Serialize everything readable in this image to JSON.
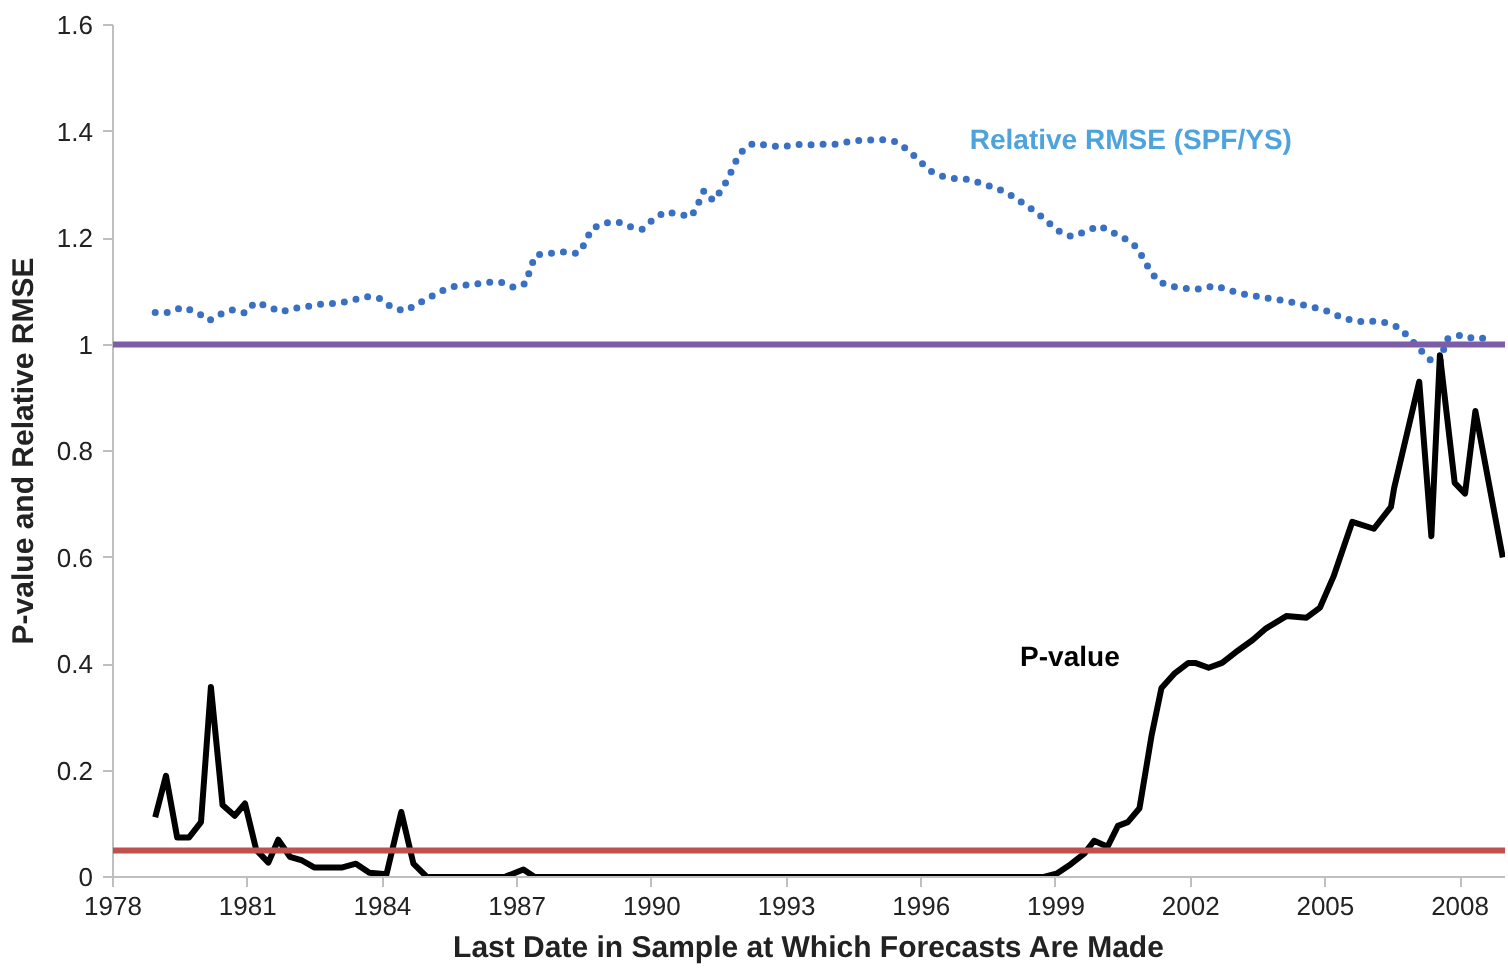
{
  "chart_data": {
    "type": "line",
    "xlabel": "Last Date in Sample at Which Forecasts Are Made",
    "ylabel": "P-value and Relative RMSE",
    "xlim": [
      1978,
      2009
    ],
    "xticks": [
      1978,
      1981,
      1984,
      1987,
      1990,
      1993,
      1996,
      1999,
      2002,
      2005,
      2008
    ],
    "ylim": [
      0,
      1.6
    ],
    "yticks": [
      0,
      0.2,
      0.4,
      0.6,
      0.8,
      1,
      1.2,
      1.4,
      1.6
    ],
    "grid": false,
    "series": [
      {
        "name": "Relative RMSE (SPF/YS)",
        "color": "#3a70c4",
        "line_style": "dotted",
        "x": [
          1978.94,
          1979.25,
          1979.55,
          1979.88,
          1980.14,
          1980.36,
          1980.65,
          1980.95,
          1981.16,
          1981.46,
          1981.73,
          1982.06,
          1982.38,
          1982.71,
          1983.01,
          1983.32,
          1983.65,
          1983.95,
          1984.22,
          1984.51,
          1984.78,
          1985.06,
          1985.36,
          1985.67,
          1985.98,
          1986.31,
          1986.64,
          1986.94,
          1987.2,
          1987.29,
          1987.41,
          1987.72,
          1988.04,
          1988.35,
          1988.52,
          1988.65,
          1988.95,
          1989.25,
          1989.52,
          1989.78,
          1990.02,
          1990.29,
          1990.58,
          1990.88,
          1991.03,
          1991.16,
          1991.37,
          1991.55,
          1991.72,
          1991.85,
          1992.03,
          1992.26,
          1992.59,
          1992.92,
          1993.22,
          1993.47,
          1993.77,
          1994.07,
          1994.52,
          1994.82,
          1995.12,
          1995.42,
          1995.69,
          1995.95,
          1996.17,
          1996.47,
          1996.77,
          1997.07,
          1997.4,
          1997.72,
          1998.02,
          1998.29,
          1998.55,
          1998.79,
          1999.04,
          1999.33,
          1999.66,
          1999.97,
          2000.24,
          2000.5,
          2000.75,
          2000.93,
          2001.08,
          2001.28,
          2001.58,
          2001.91,
          2002.22,
          2002.54,
          2002.85,
          2003.17,
          2003.49,
          2003.8,
          2004.12,
          2004.43,
          2004.73,
          2005.03,
          2005.36,
          2005.68,
          2005.99,
          2006.29,
          2006.61,
          2006.86,
          2007.09,
          2007.36,
          2007.55,
          2007.7,
          2008.04,
          2008.34,
          2008.64
        ],
        "values": [
          1.06,
          1.06,
          1.07,
          1.06,
          1.045,
          1.056,
          1.065,
          1.059,
          1.079,
          1.072,
          1.061,
          1.068,
          1.072,
          1.077,
          1.077,
          1.083,
          1.09,
          1.086,
          1.069,
          1.063,
          1.076,
          1.089,
          1.102,
          1.111,
          1.112,
          1.117,
          1.117,
          1.107,
          1.115,
          1.142,
          1.168,
          1.171,
          1.174,
          1.171,
          1.191,
          1.217,
          1.228,
          1.23,
          1.221,
          1.216,
          1.234,
          1.249,
          1.245,
          1.24,
          1.264,
          1.289,
          1.27,
          1.29,
          1.315,
          1.341,
          1.365,
          1.378,
          1.374,
          1.371,
          1.376,
          1.375,
          1.376,
          1.376,
          1.383,
          1.384,
          1.385,
          1.381,
          1.366,
          1.346,
          1.327,
          1.316,
          1.311,
          1.31,
          1.301,
          1.292,
          1.279,
          1.264,
          1.249,
          1.232,
          1.214,
          1.203,
          1.212,
          1.223,
          1.211,
          1.201,
          1.186,
          1.164,
          1.141,
          1.118,
          1.109,
          1.105,
          1.104,
          1.111,
          1.102,
          1.095,
          1.09,
          1.086,
          1.082,
          1.076,
          1.07,
          1.063,
          1.051,
          1.043,
          1.044,
          1.042,
          1.033,
          1.014,
          0.992,
          0.969,
          0.966,
          1.01,
          1.018,
          1.01,
          1.013
        ]
      },
      {
        "name": "P-value",
        "color": "#000000",
        "line_style": "solid",
        "x": [
          1978.94,
          1979.18,
          1979.43,
          1979.69,
          1979.96,
          1980.18,
          1980.44,
          1980.71,
          1980.94,
          1981.19,
          1981.46,
          1981.68,
          1981.94,
          1982.21,
          1982.48,
          1983.11,
          1983.41,
          1983.71,
          1984.09,
          1984.42,
          1984.69,
          1984.99,
          1986.72,
          1987.14,
          1987.39,
          1998.73,
          1999.03,
          1999.33,
          1999.63,
          1999.85,
          2000.15,
          2000.38,
          2000.6,
          2000.86,
          2001.13,
          2001.35,
          2001.65,
          2001.95,
          2002.1,
          2002.4,
          2002.7,
          2003.0,
          2003.38,
          2003.68,
          2004.13,
          2004.58,
          2004.88,
          2005.18,
          2005.6,
          2006.08,
          2006.46,
          2006.53,
          2007.09,
          2007.36,
          2007.55,
          2007.88,
          2008.11,
          2008.34,
          2008.95
        ],
        "values": [
          0.112,
          0.19,
          0.074,
          0.074,
          0.103,
          0.357,
          0.135,
          0.115,
          0.138,
          0.051,
          0.027,
          0.07,
          0.038,
          0.031,
          0.018,
          0.018,
          0.025,
          0.008,
          0.005,
          0.122,
          0.025,
          0,
          0,
          0.014,
          0,
          0,
          0.007,
          0.024,
          0.044,
          0.068,
          0.057,
          0.096,
          0.103,
          0.129,
          0.266,
          0.355,
          0.383,
          0.402,
          0.402,
          0.393,
          0.402,
          0.422,
          0.445,
          0.467,
          0.49,
          0.487,
          0.506,
          0.564,
          0.667,
          0.654,
          0.695,
          0.73,
          0.93,
          0.64,
          0.98,
          0.74,
          0.72,
          0.875,
          0.6
        ]
      }
    ],
    "ref_lines": [
      {
        "axis": "y",
        "value": 1,
        "color": "#7b5ea7"
      },
      {
        "axis": "y",
        "value": 0.05,
        "color": "#c0504d"
      }
    ]
  }
}
